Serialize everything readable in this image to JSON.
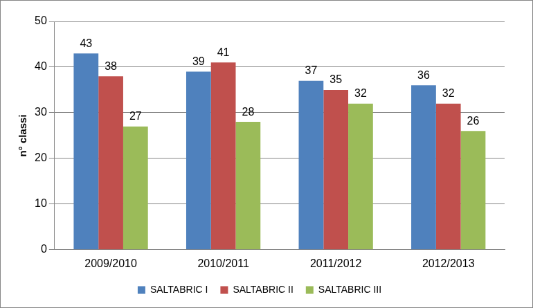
{
  "chart_data": {
    "type": "bar",
    "y_label": "n° classi",
    "categories": [
      "2009/2010",
      "2010/2011",
      "2011/2012",
      "2012/2013"
    ],
    "series": [
      {
        "name": "SALTABRIC I",
        "color": "#4f81bd",
        "values": [
          43,
          39,
          37,
          36
        ]
      },
      {
        "name": "SALTABRIC II",
        "color": "#c0504d",
        "values": [
          38,
          41,
          35,
          32
        ]
      },
      {
        "name": "SALTABRIC III",
        "color": "#9bbb59",
        "values": [
          27,
          28,
          32,
          26
        ]
      }
    ],
    "ylim": [
      0,
      50
    ],
    "yticks": [
      0,
      10,
      20,
      30,
      40,
      50
    ],
    "grid": true,
    "legend": "bottom",
    "data_labels": true
  }
}
